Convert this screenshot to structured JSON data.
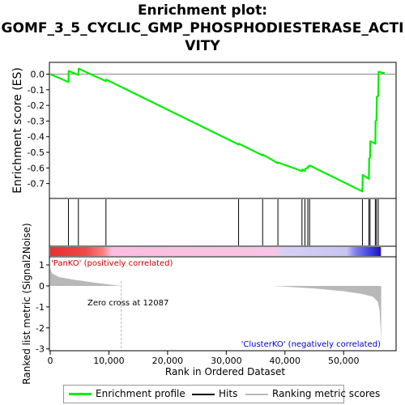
{
  "title_lines": [
    "Enrichment plot:",
    "GOMF_3_5_CYCLIC_GMP_PHOSPHODIESTERASE_ACTI",
    "VITY"
  ],
  "chart_data": {
    "type": "line",
    "es_panel": {
      "ylabel": "Enrichment score (ES)",
      "ylim": [
        -0.79,
        0.07
      ],
      "yticks": [
        0.0,
        -0.1,
        -0.2,
        -0.3,
        -0.4,
        -0.5,
        -0.6,
        -0.7
      ],
      "ytick_labels": [
        "0.0",
        "-0.1",
        "-0.2",
        "-0.3",
        "-0.4",
        "-0.5",
        "-0.6",
        "-0.7"
      ],
      "series": [
        {
          "name": "Enrichment profile",
          "color": "#00ee00",
          "x": [
            0,
            3100,
            3150,
            4800,
            4850,
            9500,
            9550,
            32100,
            32150,
            36200,
            36250,
            38800,
            38850,
            42900,
            42950,
            43400,
            43450,
            43900,
            43950,
            44200,
            44250,
            53200,
            53250,
            54300,
            54350,
            54500,
            54550,
            55400,
            55450,
            55600,
            55650,
            55900,
            55950,
            57000
          ],
          "y": [
            0.0,
            -0.05,
            0.02,
            -0.005,
            0.035,
            -0.045,
            -0.035,
            -0.45,
            -0.445,
            -0.52,
            -0.515,
            -0.57,
            -0.565,
            -0.62,
            -0.61,
            -0.62,
            -0.605,
            -0.6,
            -0.59,
            -0.59,
            -0.585,
            -0.75,
            -0.645,
            -0.67,
            -0.54,
            -0.535,
            -0.43,
            -0.445,
            -0.3,
            -0.295,
            -0.145,
            -0.14,
            0.015,
            0.005
          ]
        }
      ]
    },
    "hits": [
      3100,
      4800,
      9500,
      32100,
      36200,
      38800,
      42900,
      43400,
      43900,
      44200,
      53200,
      54300,
      54500,
      55400,
      55600,
      55900
    ],
    "colorbar_stops": [
      {
        "x": 0,
        "color": "#e83030"
      },
      {
        "x": 6000,
        "color": "#f04848"
      },
      {
        "x": 9000,
        "color": "#f88080"
      },
      {
        "x": 10500,
        "color": "#fbbde0"
      },
      {
        "x": 38500,
        "color": "#f8c4e4"
      },
      {
        "x": 39500,
        "color": "#d4d0f4"
      },
      {
        "x": 50500,
        "color": "#c8c4f2"
      },
      {
        "x": 52000,
        "color": "#8080f0"
      },
      {
        "x": 54500,
        "color": "#4040e0"
      },
      {
        "x": 56300,
        "color": "#2010c0"
      }
    ],
    "metric_panel": {
      "ylabel": "Ranked list metric (Signal2Noise)",
      "ylim": [
        -3.05,
        1.35
      ],
      "yticks": [
        1,
        0,
        -1,
        -2,
        -3
      ],
      "ytick_labels": [
        "1",
        "0",
        "-1",
        "-2",
        "-3"
      ],
      "fill_color": "#b8b8b8",
      "profile_x": [
        0,
        300,
        1500,
        4000,
        8000,
        12087,
        20000,
        38000,
        45000,
        50000,
        53000,
        55000,
        55800,
        56100,
        56300,
        56400
      ],
      "profile_y": [
        0.85,
        0.6,
        0.42,
        0.3,
        0.14,
        0.0,
        0.0,
        0.0,
        -0.12,
        -0.25,
        -0.38,
        -0.52,
        -0.75,
        -1.1,
        -2.0,
        -2.9
      ],
      "visible_segments": [
        [
          0,
          12087
        ],
        [
          38000,
          56400
        ]
      ],
      "zero_cross": 12087,
      "zero_cross_label": "Zero cross at 12087",
      "pos_label": "'PanKO' (positively correlated)",
      "neg_label": "'ClusterKO' (negatively correlated)",
      "pos_label_color": "#cc0000",
      "neg_label_color": "#0000cc"
    },
    "x_axis": {
      "xlabel": "Rank in Ordered Dataset",
      "xlim": [
        0,
        58800
      ],
      "xticks": [
        0,
        10000,
        20000,
        30000,
        40000,
        50000
      ],
      "xtick_labels": [
        "0",
        "10,000",
        "20,000",
        "30,000",
        "40,000",
        "50,000"
      ]
    },
    "legend": {
      "placement": "bottom",
      "items": [
        {
          "label": "Enrichment profile",
          "color": "#00ee00"
        },
        {
          "label": "Hits",
          "color": "#000000"
        },
        {
          "label": "Ranking metric scores",
          "color": "#bbbbbb"
        }
      ]
    }
  }
}
